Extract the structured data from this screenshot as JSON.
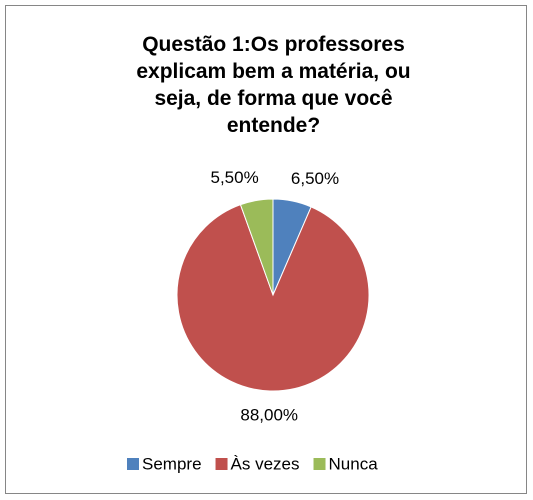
{
  "chart_data": {
    "type": "pie",
    "title": "Questão 1:Os professores explicam bem a matéria, ou seja, de forma que você entende?",
    "categories": [
      "Sempre",
      "Às vezes",
      "Nunca"
    ],
    "values": [
      6.5,
      88,
      5.5
    ],
    "value_labels": [
      "6,50%",
      "88,00%",
      "5,50%"
    ],
    "colors": [
      "#4f81bd",
      "#c0504d",
      "#9bbb59"
    ],
    "legend": "bottom"
  }
}
